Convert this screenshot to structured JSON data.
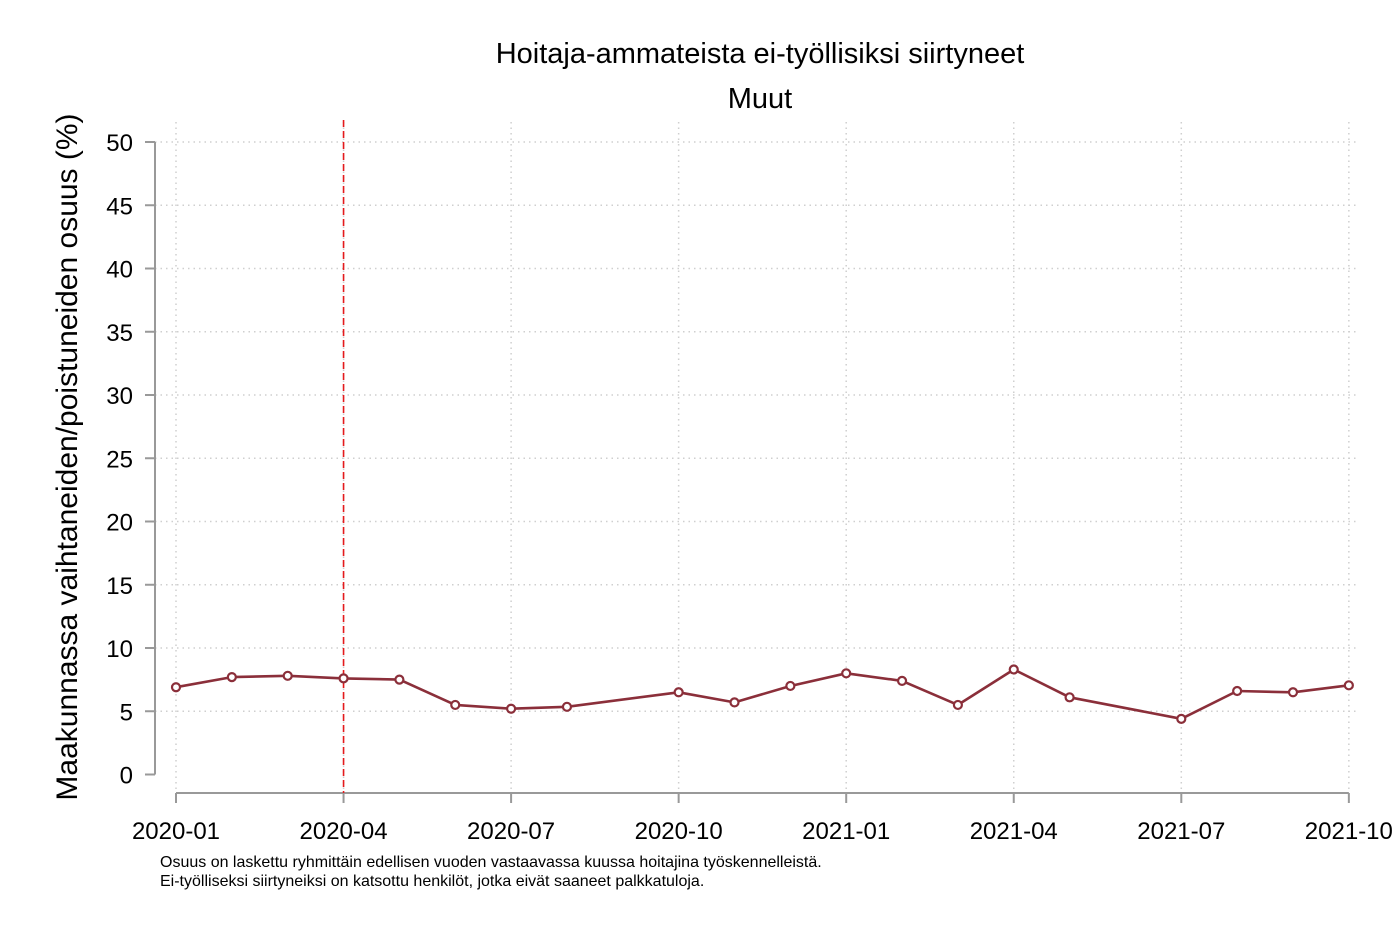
{
  "chart_data": {
    "type": "line",
    "title": "Hoitaja-ammateista ei-työllisiksi siirtyneet",
    "subtitle": "Muut",
    "ylabel": "Maakunnassa vaihtaneiden/poistuneiden osuus (%)",
    "xlabel": "",
    "ylim": [
      0,
      50
    ],
    "yticks": [
      "0",
      "5",
      "10",
      "15",
      "20",
      "25",
      "30",
      "35",
      "40",
      "45",
      "50"
    ],
    "xticks": [
      "2020-01",
      "2020-04",
      "2020-07",
      "2020-10",
      "2021-01",
      "2021-04",
      "2021-07",
      "2021-10"
    ],
    "grid": true,
    "reference_line": {
      "x": "2020-04",
      "color": "#e41a1c",
      "style": "dashed"
    },
    "series": [
      {
        "color": "#8b2f3a",
        "x": [
          "2020-01",
          "2020-02",
          "2020-03",
          "2020-04",
          "2020-05",
          "2020-06",
          "2020-07",
          "2020-08",
          "2020-10",
          "2020-11",
          "2020-12",
          "2021-01",
          "2021-02",
          "2021-03",
          "2021-04",
          "2021-05",
          "2021-07",
          "2021-08",
          "2021-09",
          "2021-10"
        ],
        "values": [
          6.9,
          7.7,
          7.8,
          7.6,
          7.5,
          5.5,
          5.2,
          5.35,
          6.5,
          5.7,
          7.0,
          8.0,
          7.4,
          5.5,
          8.3,
          6.1,
          4.4,
          6.6,
          6.5,
          7.05
        ]
      }
    ]
  },
  "notes": [
    "Osuus on laskettu ryhmittäin edellisen vuoden vastaavassa kuussa hoitajina työskennelleistä.",
    "Ei-työlliseksi siirtyneiksi on katsottu henkilöt, jotka eivät saaneet palkkatuloja."
  ]
}
